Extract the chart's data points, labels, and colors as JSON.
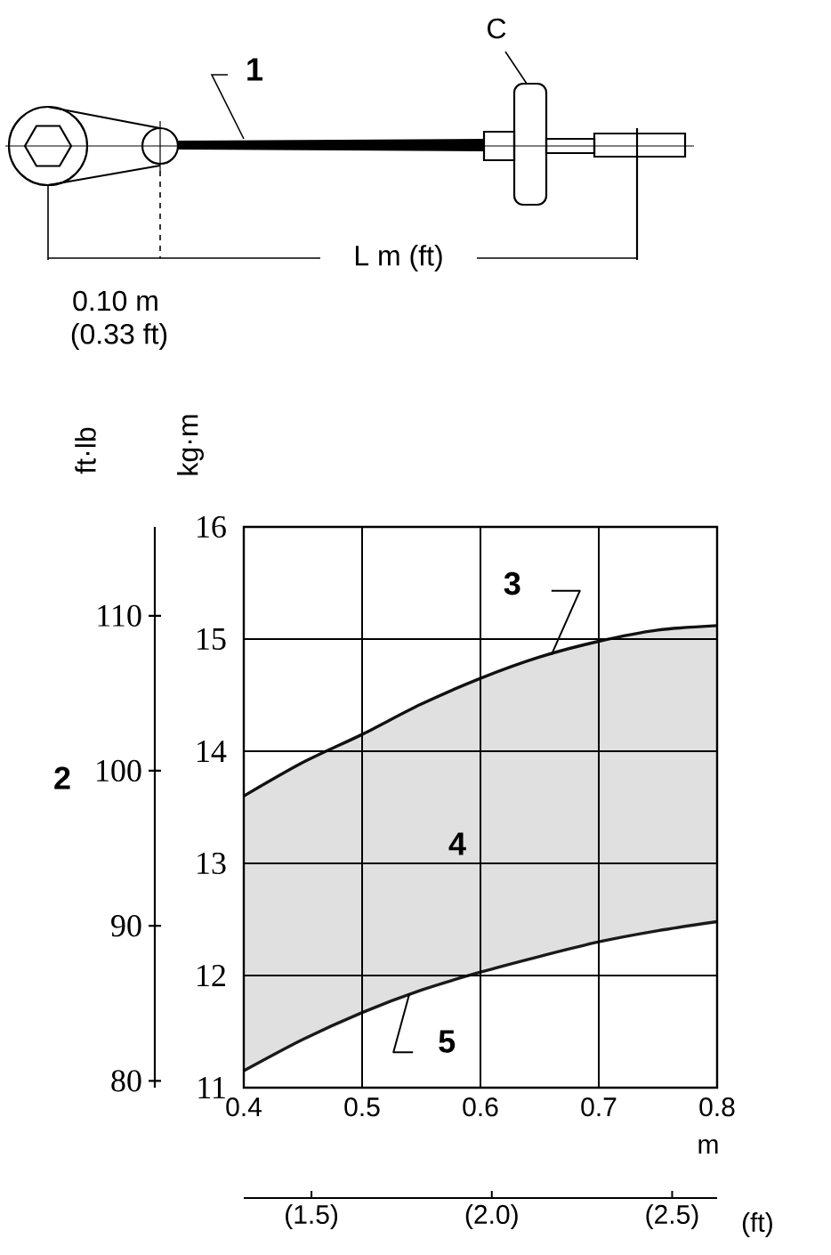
{
  "chart_data": {
    "type": "line",
    "xlabel": "m",
    "ylabel": "kg·m",
    "y2label": "ft·lb",
    "x2label": "(ft)",
    "x": [
      0.4,
      0.45,
      0.5,
      0.55,
      0.6,
      0.65,
      0.7,
      0.75,
      0.8
    ],
    "series": [
      {
        "color": "#111111",
        "values": [
          13.6,
          13.9,
          14.15,
          14.42,
          14.65,
          14.84,
          14.98,
          15.08,
          15.12
        ],
        "lower": [
          11.15,
          11.43,
          11.67,
          11.87,
          12.03,
          12.17,
          12.3,
          12.4,
          12.48
        ],
        "upper": [
          13.6,
          13.9,
          14.15,
          14.42,
          14.65,
          14.84,
          14.98,
          15.08,
          15.12
        ]
      },
      {
        "color": "#1a1a1a",
        "values": [
          11.15,
          11.43,
          11.67,
          11.87,
          12.03,
          12.17,
          12.3,
          12.4,
          12.48
        ]
      }
    ],
    "xlim": [
      0.4,
      0.8
    ],
    "xticks": [
      0.4,
      0.5,
      0.6,
      0.7,
      0.8
    ],
    "ylim": [
      11,
      16
    ],
    "yticks": [
      11,
      12,
      13,
      14,
      15,
      16
    ],
    "y2lim": [
      79.56,
      115.73
    ],
    "y2ticks": [
      80,
      90,
      100,
      110
    ],
    "x2lim": [
      1.3123,
      2.6247
    ],
    "x2ticks": [
      {
        "value": 1.5,
        "label": "(1.5)"
      },
      {
        "value": 2,
        "label": "(2.0)"
      },
      {
        "value": 2.5,
        "label": "(2.5)"
      }
    ],
    "grid": true,
    "annotations": [
      "1",
      "C",
      "L m (ft)",
      "0.10 m",
      "(0.33 ft)",
      "2",
      {
        "text": "3",
        "x": 0.66,
        "y": 14.86
      },
      "4",
      {
        "text": "5",
        "x": 0.54,
        "y": 11.84
      }
    ]
  }
}
